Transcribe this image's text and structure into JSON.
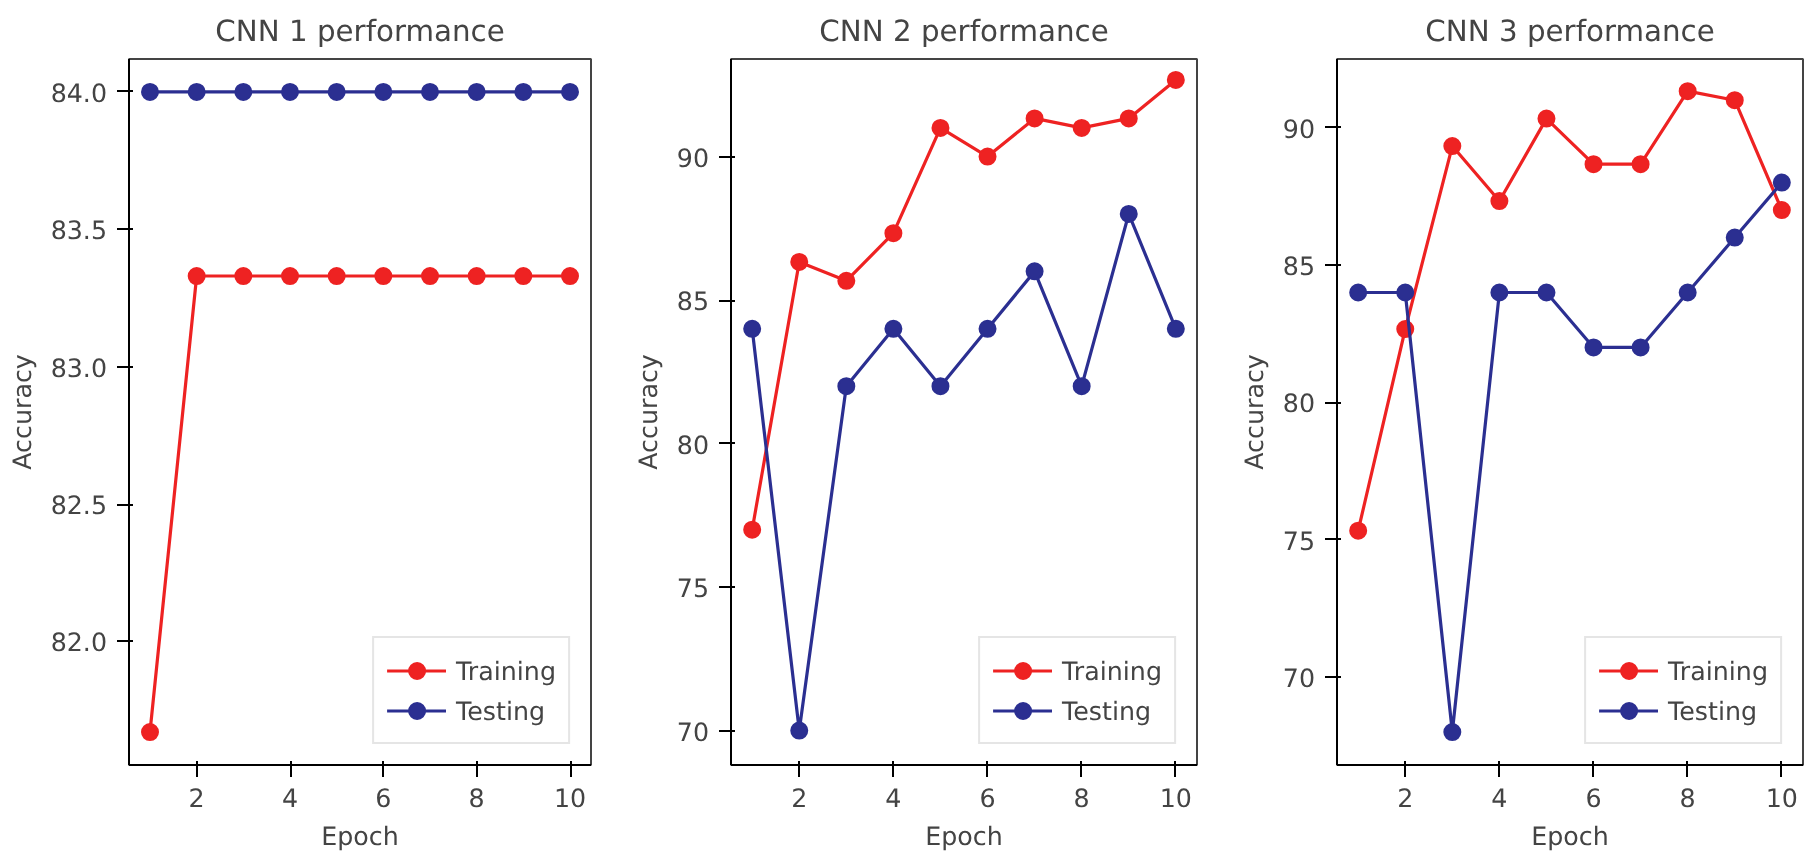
{
  "chart_data": [
    {
      "type": "line",
      "title": "CNN 1 performance",
      "xlabel": "Epoch",
      "ylabel": "Accuracy",
      "x": [
        1,
        2,
        3,
        4,
        5,
        6,
        7,
        8,
        9,
        10
      ],
      "xlim": [
        0.55,
        10.45
      ],
      "xticks": [
        2,
        4,
        6,
        8,
        10
      ],
      "ylim": [
        81.55,
        84.12
      ],
      "yticks": [
        {
          "value": 82,
          "label": "82.0"
        },
        {
          "value": 82.5,
          "label": "82.5"
        },
        {
          "value": 83,
          "label": "83.0"
        },
        {
          "value": 83.5,
          "label": "83.5"
        },
        {
          "value": 84,
          "label": "84.0"
        }
      ],
      "legend": "bottom right",
      "marker": "circle",
      "grid": false,
      "series": [
        {
          "name": "Training",
          "color": "#ee2222",
          "values": [
            81.67,
            83.33,
            83.33,
            83.33,
            83.33,
            83.33,
            83.33,
            83.33,
            83.33,
            83.33
          ]
        },
        {
          "name": "Testing",
          "color": "#2b2f91",
          "values": [
            84,
            84,
            84,
            84,
            84,
            84,
            84,
            84,
            84,
            84
          ]
        }
      ]
    },
    {
      "type": "line",
      "title": "CNN 2 performance",
      "xlabel": "Epoch",
      "ylabel": "Accuracy",
      "x": [
        1,
        2,
        3,
        4,
        5,
        6,
        7,
        8,
        9,
        10
      ],
      "xlim": [
        0.55,
        10.45
      ],
      "xticks": [
        2,
        4,
        6,
        8,
        10
      ],
      "ylim": [
        68.8,
        93.4
      ],
      "yticks": [
        70,
        75,
        80,
        85,
        90
      ],
      "legend": "bottom right",
      "marker": "circle",
      "grid": false,
      "series": [
        {
          "name": "Training",
          "color": "#ee2222",
          "values": [
            77,
            86.33,
            85.67,
            87.33,
            91,
            90,
            91.33,
            91,
            91.33,
            92.67
          ]
        },
        {
          "name": "Testing",
          "color": "#2b2f91",
          "values": [
            84,
            70,
            82,
            84,
            82,
            84,
            86,
            82,
            88,
            84
          ]
        }
      ]
    },
    {
      "type": "line",
      "title": "CNN 3 performance",
      "xlabel": "Epoch",
      "ylabel": "Accuracy",
      "x": [
        1,
        2,
        3,
        4,
        5,
        6,
        7,
        8,
        9,
        10
      ],
      "xlim": [
        0.55,
        10.45
      ],
      "xticks": [
        2,
        4,
        6,
        8,
        10
      ],
      "ylim": [
        66.8,
        92.5
      ],
      "yticks": [
        70,
        75,
        80,
        85,
        90
      ],
      "legend": "bottom right",
      "marker": "circle",
      "grid": false,
      "series": [
        {
          "name": "Training",
          "color": "#ee2222",
          "values": [
            75.33,
            82.67,
            89.33,
            87.33,
            90.33,
            88.67,
            88.67,
            91.33,
            91,
            87
          ]
        },
        {
          "name": "Testing",
          "color": "#2b2f91",
          "values": [
            84,
            84,
            68,
            84,
            84,
            82,
            82,
            84,
            86,
            88
          ]
        }
      ]
    }
  ]
}
